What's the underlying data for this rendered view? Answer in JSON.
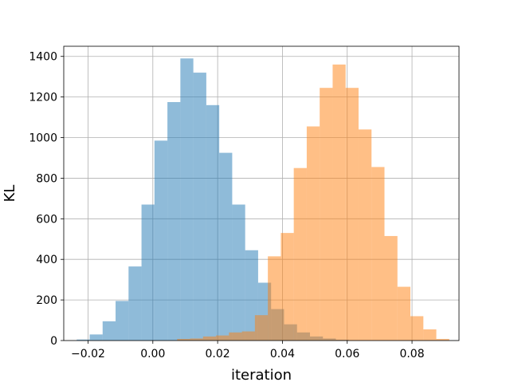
{
  "chart_data": {
    "type": "histogram",
    "title": "",
    "xlabel": "iteration",
    "ylabel": "KL",
    "xlim": [
      -0.0275,
      0.0945
    ],
    "ylim": [
      0,
      1450
    ],
    "xticks": [
      -0.02,
      0.0,
      0.02,
      0.04,
      0.06,
      0.08
    ],
    "xtick_labels": [
      "−0.02",
      "0.00",
      "0.02",
      "0.04",
      "0.06",
      "0.08"
    ],
    "yticks": [
      0,
      200,
      400,
      600,
      800,
      1000,
      1200,
      1400
    ],
    "ytick_labels": [
      "0",
      "200",
      "400",
      "600",
      "800",
      "1000",
      "1200",
      "1400"
    ],
    "grid": true,
    "series": [
      {
        "color": "#1f77b4",
        "alpha": 0.5,
        "bin_edges": [
          -0.0235,
          -0.0195,
          -0.0155,
          -0.0115,
          -0.0075,
          -0.0035,
          0.0005,
          0.0045,
          0.0085,
          0.0125,
          0.0165,
          0.0205,
          0.0245,
          0.0285,
          0.0325,
          0.0365,
          0.0405,
          0.0445,
          0.0485,
          0.0525,
          0.0565,
          0.0605
        ],
        "values": [
          5,
          30,
          95,
          195,
          365,
          670,
          985,
          1175,
          1390,
          1320,
          1160,
          925,
          670,
          445,
          285,
          155,
          80,
          40,
          20,
          10,
          4
        ]
      },
      {
        "color": "#ff7f0e",
        "alpha": 0.5,
        "bin_edges": [
          0.0075,
          0.0115,
          0.0155,
          0.0195,
          0.0235,
          0.0275,
          0.0315,
          0.0355,
          0.0395,
          0.0435,
          0.0475,
          0.0515,
          0.0555,
          0.0595,
          0.0635,
          0.0675,
          0.0715,
          0.0755,
          0.0795,
          0.0835,
          0.0875,
          0.0915
        ],
        "values": [
          8,
          10,
          20,
          25,
          40,
          45,
          125,
          415,
          530,
          850,
          1055,
          1245,
          1360,
          1245,
          1040,
          855,
          515,
          265,
          120,
          55,
          8
        ]
      }
    ]
  }
}
